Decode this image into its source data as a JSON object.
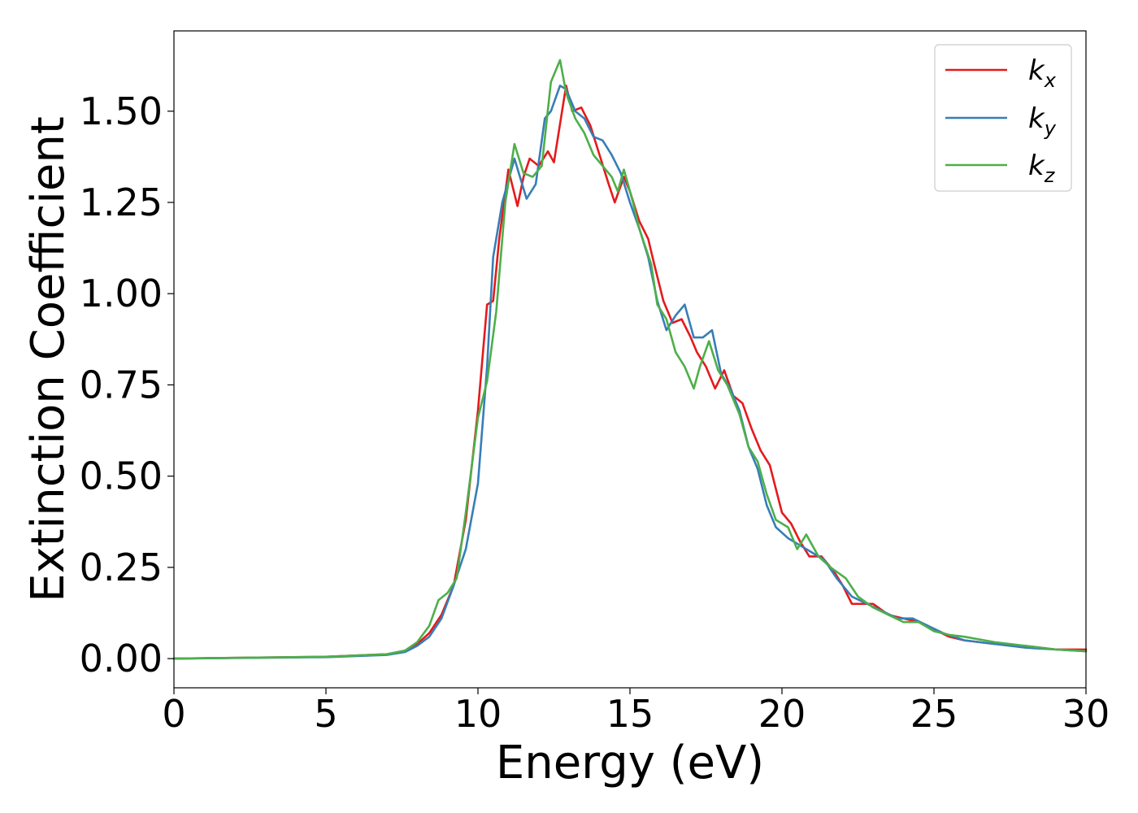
{
  "chart_data": {
    "type": "line",
    "xlabel": "Energy (eV)",
    "ylabel": "Extinction Coefficient",
    "xlim": [
      0,
      30
    ],
    "ylim": [
      -0.08,
      1.72
    ],
    "xticks": [
      0,
      5,
      10,
      15,
      20,
      25,
      30
    ],
    "xtick_labels": [
      "0",
      "5",
      "10",
      "15",
      "20",
      "25",
      "30"
    ],
    "yticks": [
      0,
      0.25,
      0.5,
      0.75,
      1.0,
      1.25,
      1.5
    ],
    "ytick_labels": [
      "0.00",
      "0.25",
      "0.50",
      "0.75",
      "1.00",
      "1.25",
      "1.50"
    ],
    "grid": false,
    "legend_position": "top-right",
    "series": [
      {
        "name": "k_x",
        "legend_base": "k",
        "legend_sub": "x",
        "color": "#e41a1c",
        "points": [
          [
            0,
            0
          ],
          [
            5,
            0.005
          ],
          [
            7,
            0.012
          ],
          [
            7.6,
            0.02
          ],
          [
            8.0,
            0.04
          ],
          [
            8.4,
            0.07
          ],
          [
            8.8,
            0.12
          ],
          [
            9.2,
            0.2
          ],
          [
            9.6,
            0.38
          ],
          [
            10.0,
            0.68
          ],
          [
            10.3,
            0.97
          ],
          [
            10.5,
            0.98
          ],
          [
            10.7,
            1.15
          ],
          [
            11.0,
            1.34
          ],
          [
            11.3,
            1.24
          ],
          [
            11.5,
            1.32
          ],
          [
            11.7,
            1.37
          ],
          [
            12.0,
            1.35
          ],
          [
            12.3,
            1.39
          ],
          [
            12.5,
            1.36
          ],
          [
            12.9,
            1.57
          ],
          [
            13.1,
            1.5
          ],
          [
            13.4,
            1.51
          ],
          [
            13.7,
            1.46
          ],
          [
            14.0,
            1.38
          ],
          [
            14.3,
            1.3
          ],
          [
            14.5,
            1.25
          ],
          [
            14.8,
            1.32
          ],
          [
            15.0,
            1.28
          ],
          [
            15.3,
            1.2
          ],
          [
            15.6,
            1.15
          ],
          [
            15.8,
            1.08
          ],
          [
            16.1,
            0.98
          ],
          [
            16.4,
            0.92
          ],
          [
            16.7,
            0.93
          ],
          [
            17.0,
            0.88
          ],
          [
            17.2,
            0.84
          ],
          [
            17.5,
            0.8
          ],
          [
            17.8,
            0.74
          ],
          [
            18.1,
            0.79
          ],
          [
            18.4,
            0.72
          ],
          [
            18.7,
            0.7
          ],
          [
            19.0,
            0.63
          ],
          [
            19.3,
            0.57
          ],
          [
            19.6,
            0.53
          ],
          [
            20.0,
            0.4
          ],
          [
            20.3,
            0.37
          ],
          [
            20.6,
            0.32
          ],
          [
            20.9,
            0.28
          ],
          [
            21.3,
            0.28
          ],
          [
            21.7,
            0.24
          ],
          [
            22.0,
            0.2
          ],
          [
            22.3,
            0.15
          ],
          [
            22.6,
            0.15
          ],
          [
            23.0,
            0.15
          ],
          [
            23.5,
            0.12
          ],
          [
            24.0,
            0.11
          ],
          [
            24.5,
            0.1
          ],
          [
            25.0,
            0.08
          ],
          [
            25.5,
            0.06
          ],
          [
            26.0,
            0.05
          ],
          [
            27.0,
            0.04
          ],
          [
            28.0,
            0.035
          ],
          [
            29.0,
            0.025
          ],
          [
            30.0,
            0.025
          ]
        ]
      },
      {
        "name": "k_y",
        "legend_base": "k",
        "legend_sub": "y",
        "color": "#377eb8",
        "points": [
          [
            0,
            0
          ],
          [
            5,
            0.004
          ],
          [
            7,
            0.01
          ],
          [
            7.6,
            0.018
          ],
          [
            8.0,
            0.035
          ],
          [
            8.4,
            0.06
          ],
          [
            8.8,
            0.11
          ],
          [
            9.2,
            0.2
          ],
          [
            9.6,
            0.3
          ],
          [
            10.0,
            0.48
          ],
          [
            10.3,
            0.8
          ],
          [
            10.5,
            1.1
          ],
          [
            10.8,
            1.25
          ],
          [
            11.2,
            1.37
          ],
          [
            11.6,
            1.26
          ],
          [
            11.9,
            1.3
          ],
          [
            12.2,
            1.48
          ],
          [
            12.4,
            1.5
          ],
          [
            12.7,
            1.57
          ],
          [
            12.9,
            1.56
          ],
          [
            13.2,
            1.5
          ],
          [
            13.5,
            1.48
          ],
          [
            13.8,
            1.43
          ],
          [
            14.1,
            1.42
          ],
          [
            14.4,
            1.38
          ],
          [
            14.7,
            1.33
          ],
          [
            15.0,
            1.25
          ],
          [
            15.3,
            1.18
          ],
          [
            15.6,
            1.1
          ],
          [
            15.9,
            0.98
          ],
          [
            16.2,
            0.9
          ],
          [
            16.5,
            0.94
          ],
          [
            16.8,
            0.97
          ],
          [
            17.1,
            0.88
          ],
          [
            17.4,
            0.88
          ],
          [
            17.7,
            0.9
          ],
          [
            18.0,
            0.78
          ],
          [
            18.3,
            0.74
          ],
          [
            18.6,
            0.68
          ],
          [
            18.9,
            0.58
          ],
          [
            19.2,
            0.52
          ],
          [
            19.5,
            0.42
          ],
          [
            19.8,
            0.36
          ],
          [
            20.2,
            0.33
          ],
          [
            20.6,
            0.31
          ],
          [
            21.0,
            0.29
          ],
          [
            21.4,
            0.27
          ],
          [
            21.8,
            0.22
          ],
          [
            22.3,
            0.17
          ],
          [
            22.8,
            0.15
          ],
          [
            23.3,
            0.13
          ],
          [
            23.8,
            0.11
          ],
          [
            24.3,
            0.11
          ],
          [
            24.8,
            0.09
          ],
          [
            25.3,
            0.07
          ],
          [
            26.0,
            0.05
          ],
          [
            27.0,
            0.04
          ],
          [
            28.0,
            0.03
          ],
          [
            29.0,
            0.025
          ],
          [
            30.0,
            0.02
          ]
        ]
      },
      {
        "name": "k_z",
        "legend_base": "k",
        "legend_sub": "z",
        "color": "#4daf4a",
        "points": [
          [
            0,
            0
          ],
          [
            5,
            0.005
          ],
          [
            7,
            0.012
          ],
          [
            7.6,
            0.022
          ],
          [
            8.0,
            0.045
          ],
          [
            8.4,
            0.09
          ],
          [
            8.7,
            0.16
          ],
          [
            9.0,
            0.18
          ],
          [
            9.3,
            0.22
          ],
          [
            9.6,
            0.4
          ],
          [
            10.0,
            0.66
          ],
          [
            10.3,
            0.76
          ],
          [
            10.6,
            0.95
          ],
          [
            10.9,
            1.25
          ],
          [
            11.2,
            1.41
          ],
          [
            11.5,
            1.33
          ],
          [
            11.8,
            1.32
          ],
          [
            12.1,
            1.35
          ],
          [
            12.4,
            1.58
          ],
          [
            12.7,
            1.64
          ],
          [
            12.9,
            1.55
          ],
          [
            13.2,
            1.48
          ],
          [
            13.5,
            1.44
          ],
          [
            13.8,
            1.38
          ],
          [
            14.1,
            1.35
          ],
          [
            14.4,
            1.32
          ],
          [
            14.6,
            1.28
          ],
          [
            14.8,
            1.34
          ],
          [
            15.1,
            1.25
          ],
          [
            15.3,
            1.18
          ],
          [
            15.7,
            1.08
          ],
          [
            15.9,
            0.97
          ],
          [
            16.2,
            0.93
          ],
          [
            16.5,
            0.84
          ],
          [
            16.8,
            0.8
          ],
          [
            17.1,
            0.74
          ],
          [
            17.3,
            0.8
          ],
          [
            17.6,
            0.87
          ],
          [
            17.9,
            0.79
          ],
          [
            18.2,
            0.75
          ],
          [
            18.6,
            0.67
          ],
          [
            18.9,
            0.58
          ],
          [
            19.2,
            0.54
          ],
          [
            19.5,
            0.45
          ],
          [
            19.8,
            0.38
          ],
          [
            20.2,
            0.36
          ],
          [
            20.5,
            0.3
          ],
          [
            20.8,
            0.34
          ],
          [
            21.2,
            0.28
          ],
          [
            21.6,
            0.25
          ],
          [
            22.1,
            0.22
          ],
          [
            22.5,
            0.17
          ],
          [
            23.0,
            0.14
          ],
          [
            23.5,
            0.12
          ],
          [
            24.0,
            0.1
          ],
          [
            24.5,
            0.1
          ],
          [
            25.0,
            0.075
          ],
          [
            25.5,
            0.065
          ],
          [
            26.0,
            0.06
          ],
          [
            27.0,
            0.045
          ],
          [
            28.0,
            0.035
          ],
          [
            29.0,
            0.025
          ],
          [
            30.0,
            0.02
          ]
        ]
      }
    ]
  }
}
